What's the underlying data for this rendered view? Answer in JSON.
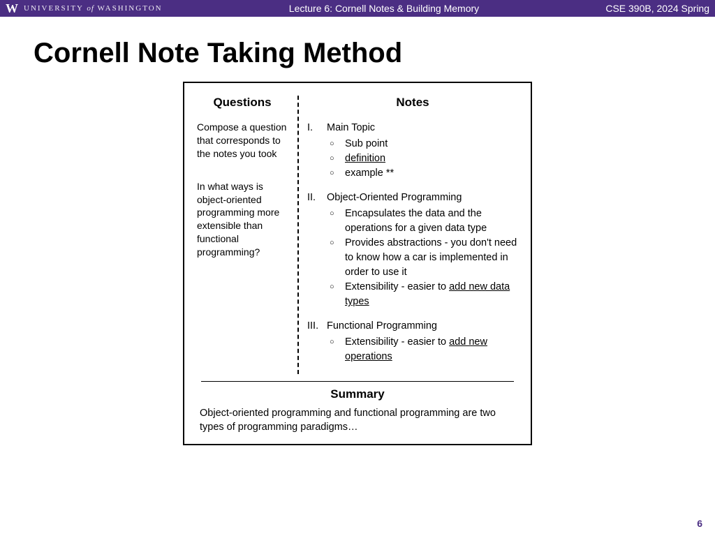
{
  "colors": {
    "header_bg": "#4b2e83",
    "header_text": "#ffffff",
    "page_number": "#4b2e83",
    "body_text": "#000000",
    "border": "#000000"
  },
  "header": {
    "logo_letter": "W",
    "institution_pre": "UNIVERSITY",
    "institution_of": "of",
    "institution_post": "WASHINGTON",
    "lecture_title": "Lecture 6: Cornell Notes & Building Memory",
    "course": "CSE 390B, 2024 Spring"
  },
  "title": "Cornell Note Taking Method",
  "questions": {
    "heading": "Questions",
    "items": [
      "Compose a question that corresponds to the notes you took",
      "In what ways is object-oriented programming more extensible than functional programming?"
    ]
  },
  "notes": {
    "heading": "Notes",
    "topics": [
      {
        "numeral": "I.",
        "title": "Main Topic",
        "subs": [
          {
            "pre": "Sub point",
            "u": "",
            "post": ""
          },
          {
            "pre": "",
            "u": "definition",
            "post": ""
          },
          {
            "pre": "example **",
            "u": "",
            "post": ""
          }
        ]
      },
      {
        "numeral": "II.",
        "title": "Object-Oriented Programming",
        "subs": [
          {
            "pre": "Encapsulates the data and the operations for a given data type",
            "u": "",
            "post": ""
          },
          {
            "pre": "Provides abstractions - you don't need to know how a car is implemented in order to use it",
            "u": "",
            "post": ""
          },
          {
            "pre": "Extensibility - easier to ",
            "u": "add new data types",
            "post": ""
          }
        ]
      },
      {
        "numeral": "III.",
        "title": "Functional Programming",
        "subs": [
          {
            "pre": "Extensibility - easier to ",
            "u": "add new operations",
            "post": ""
          }
        ]
      }
    ]
  },
  "summary": {
    "heading": "Summary",
    "text": "Object-oriented programming and functional programming are two types of programming paradigms…"
  },
  "page_number": "6"
}
